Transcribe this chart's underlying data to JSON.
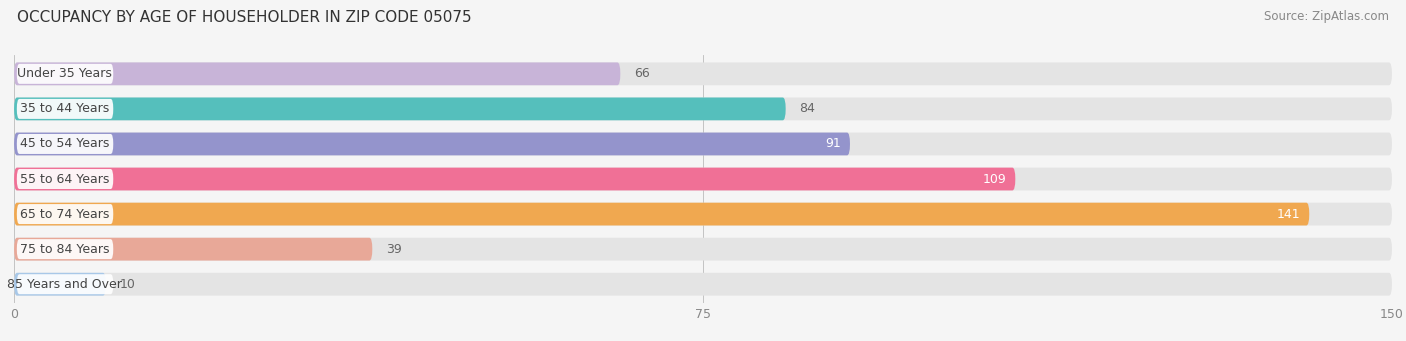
{
  "title": "OCCUPANCY BY AGE OF HOUSEHOLDER IN ZIP CODE 05075",
  "source": "Source: ZipAtlas.com",
  "categories": [
    "Under 35 Years",
    "35 to 44 Years",
    "45 to 54 Years",
    "55 to 64 Years",
    "65 to 74 Years",
    "75 to 84 Years",
    "85 Years and Over"
  ],
  "values": [
    66,
    84,
    91,
    109,
    141,
    39,
    10
  ],
  "bar_colors": [
    "#c8b4d8",
    "#55bfbc",
    "#9494cc",
    "#f07096",
    "#f0a850",
    "#e8a898",
    "#a8c8e8"
  ],
  "xlim": [
    0,
    150
  ],
  "xticks": [
    0,
    75,
    150
  ],
  "label_colors": [
    "#666666",
    "#666666",
    "#ffffff",
    "#ffffff",
    "#ffffff",
    "#666666",
    "#666666"
  ],
  "background_color": "#f5f5f5",
  "bar_bg_color": "#e4e4e4",
  "title_fontsize": 11,
  "source_fontsize": 8.5,
  "label_fontsize": 9,
  "tick_fontsize": 9,
  "category_fontsize": 9
}
